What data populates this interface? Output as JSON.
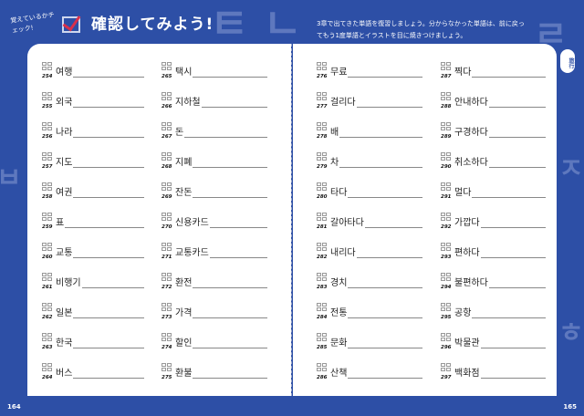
{
  "header": {
    "check_label": "覚えているかチェック!",
    "title": "確認してみよう!",
    "instructions": "3章で出てきた単語を復習しましょう。分からなかった単語は、前に戻ってもう1度単語とイラストを目に焼きつけましょう。"
  },
  "side_tab": "旅行",
  "page_numbers": {
    "left": "164",
    "right": "165"
  },
  "columns": [
    [
      {
        "n": "254",
        "w": "여행"
      },
      {
        "n": "255",
        "w": "외국"
      },
      {
        "n": "256",
        "w": "나라"
      },
      {
        "n": "257",
        "w": "지도"
      },
      {
        "n": "258",
        "w": "여권"
      },
      {
        "n": "259",
        "w": "표"
      },
      {
        "n": "260",
        "w": "교통"
      },
      {
        "n": "261",
        "w": "비행기"
      },
      {
        "n": "262",
        "w": "일본"
      },
      {
        "n": "263",
        "w": "한국"
      },
      {
        "n": "264",
        "w": "버스"
      }
    ],
    [
      {
        "n": "265",
        "w": "택시"
      },
      {
        "n": "266",
        "w": "지하철"
      },
      {
        "n": "267",
        "w": "돈"
      },
      {
        "n": "268",
        "w": "지폐"
      },
      {
        "n": "269",
        "w": "잔돈"
      },
      {
        "n": "270",
        "w": "신용카드"
      },
      {
        "n": "271",
        "w": "교통카드"
      },
      {
        "n": "272",
        "w": "환전"
      },
      {
        "n": "273",
        "w": "가격"
      },
      {
        "n": "274",
        "w": "할인"
      },
      {
        "n": "275",
        "w": "환불"
      }
    ],
    [
      {
        "n": "276",
        "w": "무료"
      },
      {
        "n": "277",
        "w": "걸리다"
      },
      {
        "n": "278",
        "w": "배"
      },
      {
        "n": "279",
        "w": "차"
      },
      {
        "n": "280",
        "w": "타다"
      },
      {
        "n": "281",
        "w": "갈아타다"
      },
      {
        "n": "282",
        "w": "내리다"
      },
      {
        "n": "283",
        "w": "경치"
      },
      {
        "n": "284",
        "w": "전통"
      },
      {
        "n": "285",
        "w": "문화"
      },
      {
        "n": "286",
        "w": "산책"
      }
    ],
    [
      {
        "n": "287",
        "w": "찍다"
      },
      {
        "n": "288",
        "w": "안내하다"
      },
      {
        "n": "289",
        "w": "구경하다"
      },
      {
        "n": "290",
        "w": "취소하다"
      },
      {
        "n": "291",
        "w": "멀다"
      },
      {
        "n": "292",
        "w": "가깝다"
      },
      {
        "n": "293",
        "w": "편하다"
      },
      {
        "n": "294",
        "w": "불편하다"
      },
      {
        "n": "295",
        "w": "공항"
      },
      {
        "n": "296",
        "w": "박물관"
      },
      {
        "n": "297",
        "w": "백화점"
      }
    ]
  ],
  "colors": {
    "background": "#2d4fa6",
    "check_mark": "#d9304b"
  }
}
